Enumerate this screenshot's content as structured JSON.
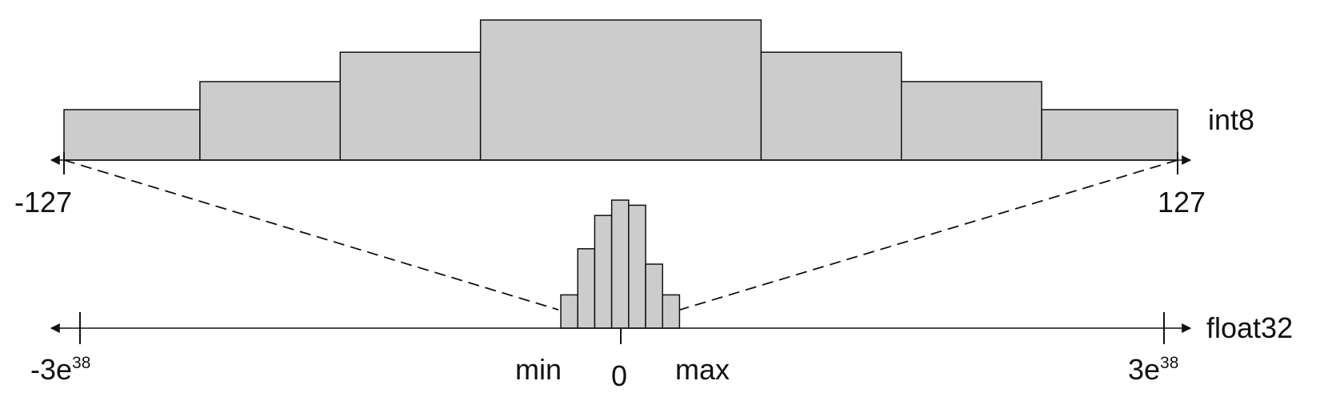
{
  "colors": {
    "bar_fill": "#cccccc",
    "stroke": "#111111",
    "background": "#ffffff"
  },
  "top_axis": {
    "name": "int8",
    "min_label": "-127",
    "max_label": "127",
    "bins": [
      {
        "from": -127,
        "to": -96,
        "height": 0.36
      },
      {
        "from": -96,
        "to": -64,
        "height": 0.56
      },
      {
        "from": -64,
        "to": -32,
        "height": 0.77
      },
      {
        "from": -32,
        "to": 32,
        "height": 1.0
      },
      {
        "from": 32,
        "to": 64,
        "height": 0.77
      },
      {
        "from": 64,
        "to": 96,
        "height": 0.56
      },
      {
        "from": 96,
        "to": 127,
        "height": 0.36
      }
    ]
  },
  "bottom_axis": {
    "name": "float32",
    "min_label": "-3e",
    "min_exp": "38",
    "max_label": "3e",
    "max_exp": "38",
    "zero_label": "0",
    "range_min_label": "min",
    "range_max_label": "max",
    "bins": [
      0.26,
      0.62,
      0.88,
      1.0,
      0.96,
      0.5,
      0.26
    ]
  }
}
